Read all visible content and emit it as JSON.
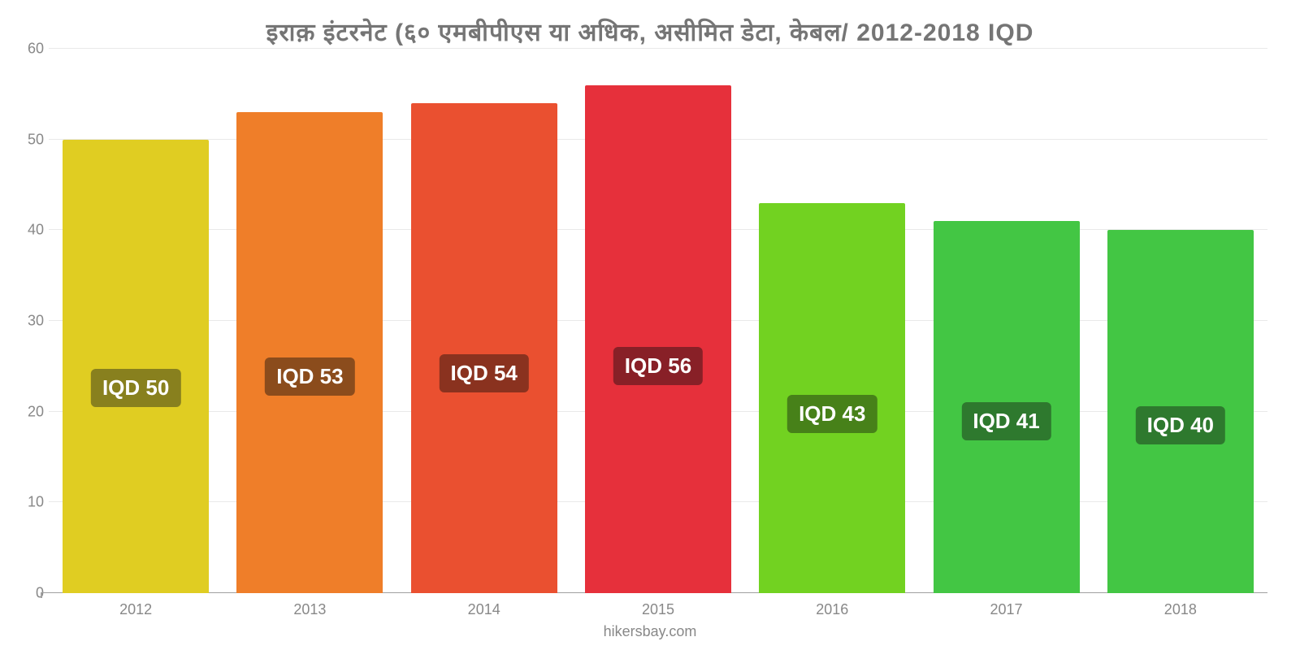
{
  "chart": {
    "type": "bar",
    "title": "इराक़ इंटरनेट (६० एमबीपीएस या अधिक, असीमित डेटा, केबल/ 2012-2018 IQD",
    "title_color": "#757575",
    "title_fontsize": 30,
    "background_color": "#ffffff",
    "grid_color": "#e9e9e9",
    "axis_color": "#a0a0a0",
    "tick_label_color": "#888888",
    "tick_label_fontsize": 18,
    "ylim": [
      0,
      60
    ],
    "ytick_step": 10,
    "yticks": [
      0,
      10,
      20,
      30,
      40,
      50,
      60
    ],
    "bar_width_pct": 84,
    "currency_prefix": "IQD ",
    "badge_fontsize": 26,
    "badge_text_color": "#ffffff",
    "badge_y_from_bottom_pct": 41,
    "attribution": "hikersbay.com",
    "categories": [
      "2012",
      "2013",
      "2014",
      "2015",
      "2016",
      "2017",
      "2018"
    ],
    "values": [
      50,
      53,
      54,
      56,
      43,
      41,
      40
    ],
    "bar_colors": [
      "#e0cd22",
      "#ef7e29",
      "#ea5030",
      "#e6303b",
      "#72d221",
      "#43c644",
      "#43c644"
    ],
    "badge_colors": [
      "#88801e",
      "#8b4c1c",
      "#8a321f",
      "#882027",
      "#478119",
      "#2e792e",
      "#2e792e"
    ]
  }
}
